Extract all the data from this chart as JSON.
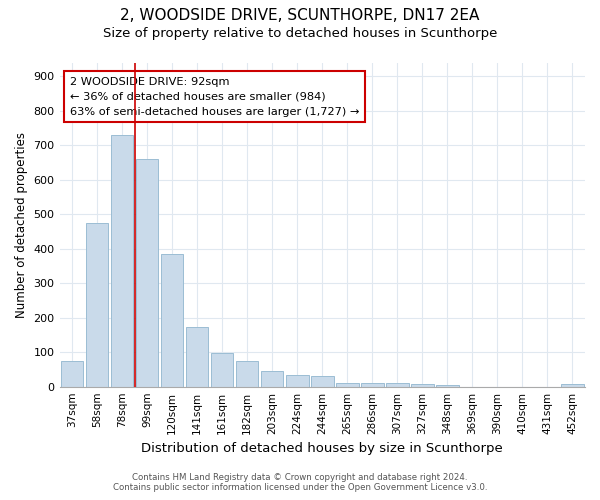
{
  "title1": "2, WOODSIDE DRIVE, SCUNTHORPE, DN17 2EA",
  "title2": "Size of property relative to detached houses in Scunthorpe",
  "xlabel": "Distribution of detached houses by size in Scunthorpe",
  "ylabel": "Number of detached properties",
  "categories": [
    "37sqm",
    "58sqm",
    "78sqm",
    "99sqm",
    "120sqm",
    "141sqm",
    "161sqm",
    "182sqm",
    "203sqm",
    "224sqm",
    "244sqm",
    "265sqm",
    "286sqm",
    "307sqm",
    "327sqm",
    "348sqm",
    "369sqm",
    "390sqm",
    "410sqm",
    "431sqm",
    "452sqm"
  ],
  "values": [
    75,
    475,
    730,
    660,
    385,
    172,
    98,
    75,
    45,
    35,
    30,
    12,
    10,
    10,
    7,
    4,
    0,
    0,
    0,
    0,
    8
  ],
  "bar_color": "#c9daea",
  "bar_edge_color": "#9bbdd4",
  "annotation_label": "2 WOODSIDE DRIVE: 92sqm",
  "annotation_line1": "← 36% of detached houses are smaller (984)",
  "annotation_line2": "63% of semi-detached houses are larger (1,727) →",
  "annotation_box_color": "white",
  "annotation_box_edge_color": "#cc0000",
  "line_color": "#cc0000",
  "ylim": [
    0,
    940
  ],
  "yticks": [
    0,
    100,
    200,
    300,
    400,
    500,
    600,
    700,
    800,
    900
  ],
  "background_color": "#ffffff",
  "grid_color": "#e0e8f0",
  "footer_line1": "Contains HM Land Registry data © Crown copyright and database right 2024.",
  "footer_line2": "Contains public sector information licensed under the Open Government Licence v3.0.",
  "title1_fontsize": 11,
  "title2_fontsize": 9.5
}
